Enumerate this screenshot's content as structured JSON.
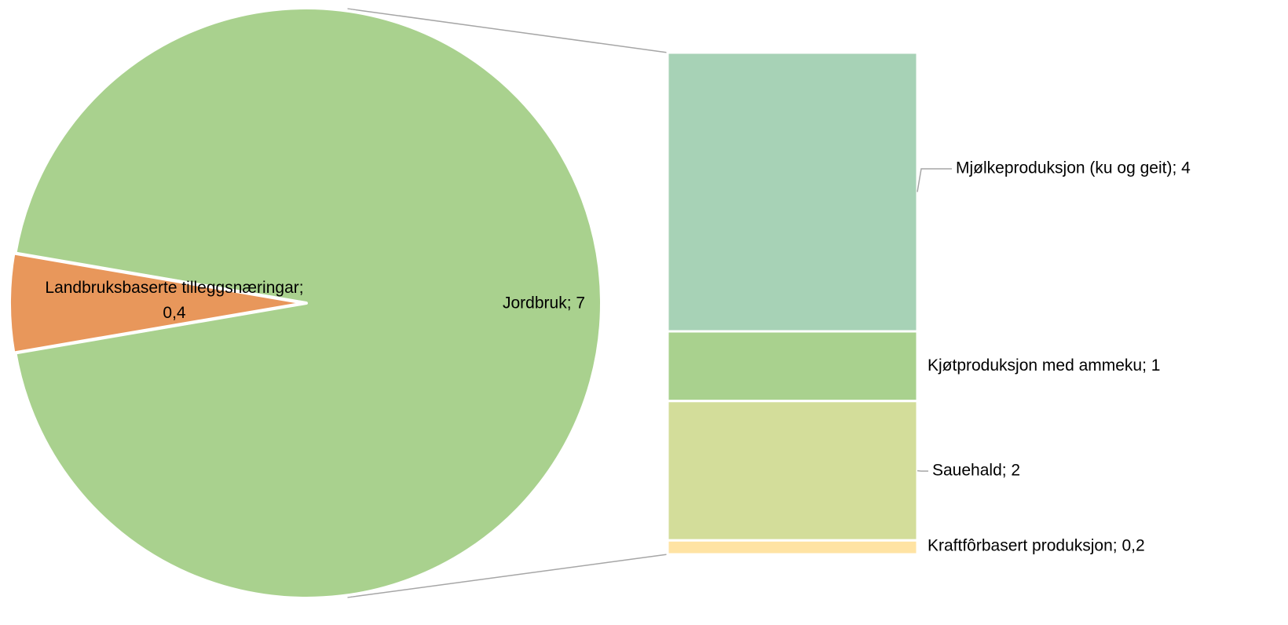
{
  "chart_data": {
    "type": "bar-of-pie",
    "pie": {
      "slices": [
        {
          "label": "Jordbruk",
          "value": 7,
          "display_value": "7",
          "color": "#a9d18e"
        },
        {
          "label": "Landbruksbaserte tilleggsnæringar",
          "value": 0.4,
          "display_value": "0,4",
          "color": "#e8975b"
        }
      ]
    },
    "bar": {
      "parent": "Jordbruk",
      "segments": [
        {
          "label": "Mjølkeproduksjon (ku og geit)",
          "value": 4,
          "display_value": "4",
          "color": "#a7d2b6"
        },
        {
          "label": "Kjøtproduksjon med ammeku",
          "value": 1,
          "display_value": "1",
          "color": "#a9d18e"
        },
        {
          "label": "Sauehald",
          "value": 2,
          "display_value": "2",
          "color": "#d3dd9a"
        },
        {
          "label": "Kraftfôrbasert produksjon",
          "value": 0.2,
          "display_value": "0,2",
          "color": "#ffe3a3"
        }
      ]
    },
    "legend": "none",
    "data_label_separator": ";"
  }
}
